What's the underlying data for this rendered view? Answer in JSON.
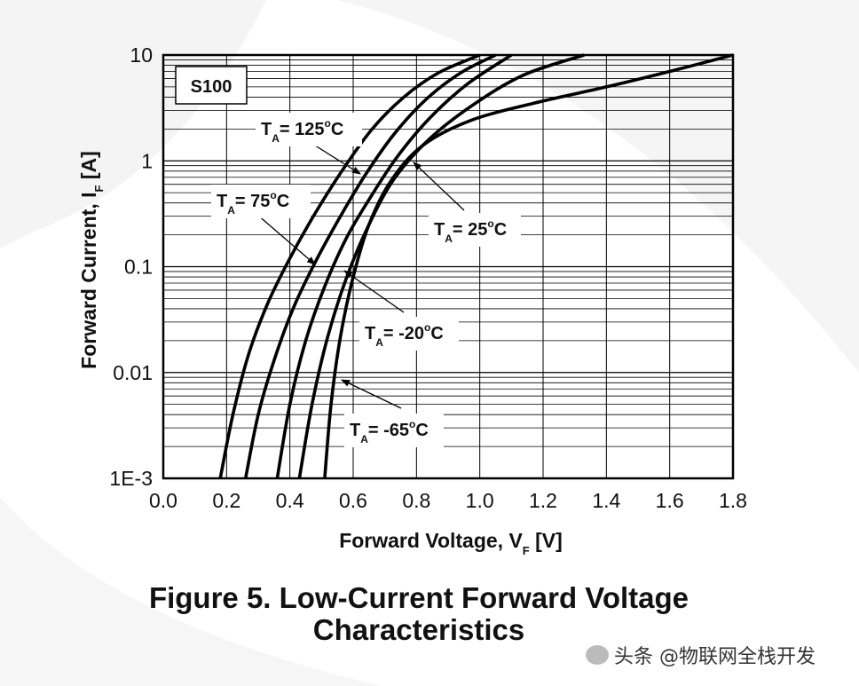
{
  "chart_data": {
    "type": "line",
    "title": "Figure 5. Low-Current Forward Voltage Characteristics",
    "title_lines": [
      "Figure 5. Low-Current Forward Voltage",
      "Characteristics"
    ],
    "device_label": "S100",
    "xlabel": "Forward Voltage, V",
    "xlabel_sub": "F",
    "xlabel_unit": " [V]",
    "ylabel": "Forward Current, I",
    "ylabel_sub": "F",
    "ylabel_unit": " [A]",
    "xlim": [
      0.0,
      1.8
    ],
    "ylim": [
      0.001,
      10
    ],
    "yscale": "log",
    "grid": true,
    "x_ticks": [
      "0.0",
      "0.2",
      "0.4",
      "0.6",
      "0.8",
      "1.0",
      "1.2",
      "1.4",
      "1.6",
      "1.8"
    ],
    "y_ticks": [
      {
        "value": 0.001,
        "label": "1E-3"
      },
      {
        "value": 0.01,
        "label": "0.01"
      },
      {
        "value": 0.1,
        "label": "0.1"
      },
      {
        "value": 1,
        "label": "1"
      },
      {
        "value": 10,
        "label": "10"
      }
    ],
    "series": [
      {
        "name": "T_A = 125°C",
        "x": [
          0.18,
          0.22,
          0.27,
          0.33,
          0.4,
          0.48,
          0.57,
          0.66,
          0.76,
          0.87,
          1.0
        ],
        "y": [
          0.001,
          0.004,
          0.015,
          0.045,
          0.12,
          0.32,
          0.85,
          2.0,
          4.0,
          6.8,
          10
        ]
      },
      {
        "name": "T_A = 75°C",
        "x": [
          0.26,
          0.3,
          0.35,
          0.41,
          0.48,
          0.56,
          0.64,
          0.73,
          0.83,
          0.94,
          1.05
        ],
        "y": [
          0.001,
          0.004,
          0.013,
          0.04,
          0.11,
          0.3,
          0.75,
          1.8,
          3.8,
          6.8,
          10
        ]
      },
      {
        "name": "T_A = 25°C",
        "x": [
          0.36,
          0.4,
          0.45,
          0.51,
          0.58,
          0.66,
          0.74,
          0.84,
          0.96,
          1.1
        ],
        "y": [
          0.001,
          0.005,
          0.02,
          0.065,
          0.19,
          0.48,
          1.1,
          2.5,
          5.3,
          10
        ]
      },
      {
        "name": "T_A = -20°C",
        "x": [
          0.43,
          0.47,
          0.52,
          0.58,
          0.65,
          0.73,
          0.84,
          0.98,
          1.14,
          1.33
        ],
        "y": [
          0.001,
          0.005,
          0.022,
          0.08,
          0.25,
          0.68,
          1.6,
          3.4,
          6.5,
          10
        ]
      },
      {
        "name": "T_A = -65°C",
        "x": [
          0.51,
          0.53,
          0.56,
          0.6,
          0.65,
          0.72,
          0.82,
          0.97,
          1.17,
          1.4,
          1.6,
          1.8
        ],
        "y": [
          0.001,
          0.005,
          0.022,
          0.08,
          0.25,
          0.65,
          1.4,
          2.4,
          3.5,
          5.0,
          7.0,
          10
        ]
      }
    ],
    "annotations": [
      {
        "main": "T",
        "sub": "A",
        "text": "= 125",
        "sup": "o",
        "unit": "C"
      },
      {
        "main": "T",
        "sub": "A",
        "text": "= 75",
        "sup": "o",
        "unit": "C"
      },
      {
        "main": "T",
        "sub": "A",
        "text": "= 25",
        "sup": "o",
        "unit": "C"
      },
      {
        "main": "T",
        "sub": "A",
        "text": "= -20",
        "sup": "o",
        "unit": "C"
      },
      {
        "main": "T",
        "sub": "A",
        "text": "= -65",
        "sup": "o",
        "unit": "C"
      }
    ]
  },
  "watermark": {
    "text": "头条 @物联网全栈开发"
  }
}
